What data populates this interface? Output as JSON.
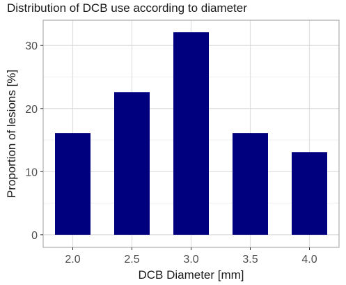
{
  "chart_data": {
    "type": "bar",
    "title": "Distribution of DCB use according to diameter",
    "xlabel": "DCB Diameter [mm]",
    "ylabel": "Proportion of lesions [%]",
    "categories": [
      "2.0",
      "2.5",
      "3.0",
      "3.5",
      "4.0"
    ],
    "values": [
      16.1,
      22.6,
      32.1,
      16.1,
      13.1
    ],
    "ylim": [
      -2,
      34
    ],
    "yticks": [
      0,
      10,
      20,
      30
    ],
    "grid": true,
    "legend": "none",
    "colors": {
      "bar": "#00007f",
      "panel_border": "#b3b3b3",
      "grid_major": "#dedede",
      "grid_minor": "#efefef"
    }
  }
}
